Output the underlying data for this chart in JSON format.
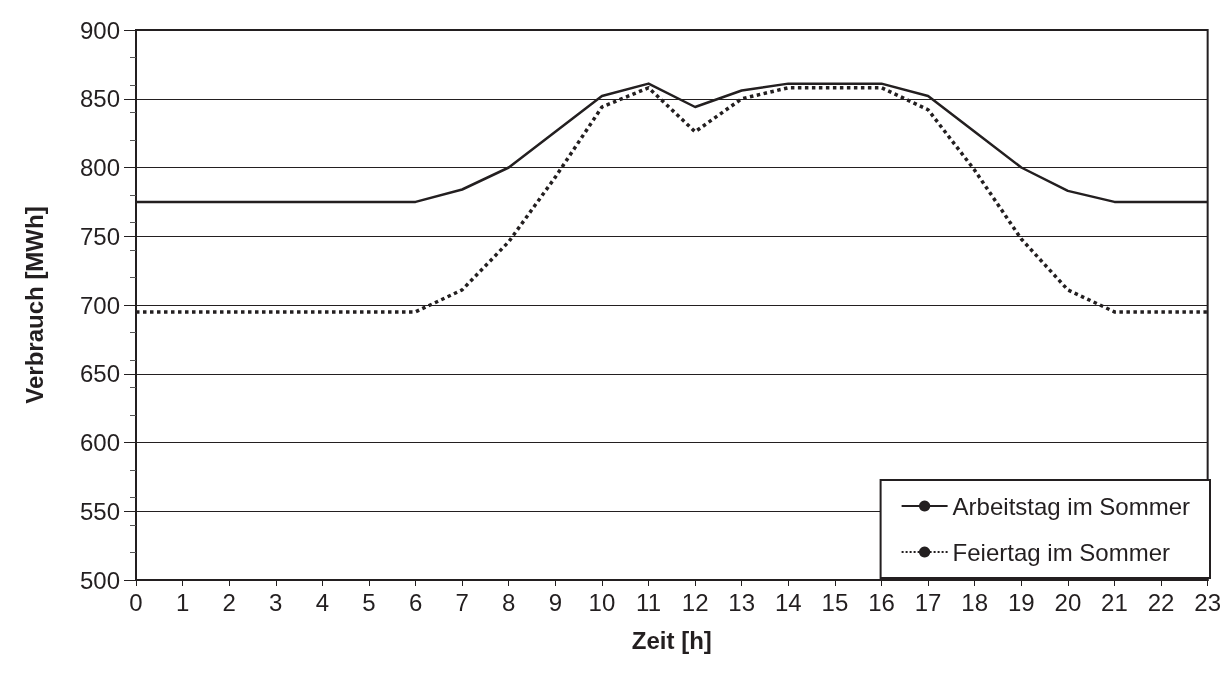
{
  "chart_data": {
    "type": "line",
    "xlabel": "Zeit [h]",
    "ylabel": "Verbrauch [MWh]",
    "x": [
      0,
      1,
      2,
      3,
      4,
      5,
      6,
      7,
      8,
      9,
      10,
      11,
      12,
      13,
      14,
      15,
      16,
      17,
      18,
      19,
      20,
      21,
      22,
      23
    ],
    "series": [
      {
        "name": "Arbeitstag im Sommer",
        "color": "#231f20",
        "line_style": "solid",
        "values": [
          775,
          775,
          775,
          775,
          775,
          775,
          775,
          784,
          800,
          826,
          852,
          861,
          844,
          856,
          861,
          861,
          861,
          852,
          826,
          800,
          783,
          775,
          775,
          775
        ]
      },
      {
        "name": "Feiertag im Sommer",
        "color": "#231f20",
        "line_style": "dotted",
        "values": [
          695,
          695,
          695,
          695,
          695,
          695,
          695,
          711,
          746,
          793,
          844,
          858,
          826,
          850,
          858,
          858,
          858,
          842,
          798,
          748,
          711,
          695,
          695,
          695
        ]
      }
    ],
    "xlim": [
      0,
      23
    ],
    "xticks": [
      0,
      1,
      2,
      3,
      4,
      5,
      6,
      7,
      8,
      9,
      10,
      11,
      12,
      13,
      14,
      15,
      16,
      17,
      18,
      19,
      20,
      21,
      22,
      23
    ],
    "ylim": [
      500,
      900
    ],
    "yticks": [
      500,
      550,
      600,
      650,
      700,
      750,
      800,
      850,
      900
    ],
    "grid": "y",
    "legend": "bottom right",
    "marker": "none"
  }
}
